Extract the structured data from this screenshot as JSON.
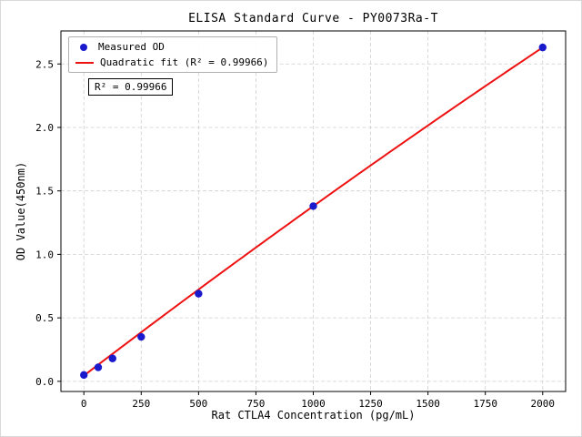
{
  "figure": {
    "title": "ELISA Standard Curve - PY0073Ra-T",
    "xlabel": "Rat CTLA4 Concentration (pg/mL)",
    "ylabel": "OD Value(450nm)",
    "annotation": "R² = 0.99966",
    "legend": [
      {
        "label": "Measured OD",
        "marker": "dot",
        "color": "#1a1acd"
      },
      {
        "label": "Quadratic fit (R² = 0.99966)",
        "marker": "line",
        "color": "#ee1111"
      }
    ]
  },
  "chart_data": {
    "type": "scatter",
    "title": "ELISA Standard Curve - PY0073Ra-T",
    "xlabel": "Rat CTLA4 Concentration (pg/mL)",
    "ylabel": "OD Value(450nm)",
    "x": [
      0,
      62.5,
      125,
      250,
      500,
      1000,
      2000
    ],
    "y": [
      0.05,
      0.11,
      0.18,
      0.35,
      0.69,
      1.38,
      2.63
    ],
    "series_name": "Measured OD",
    "fit": {
      "type": "quadratic",
      "label": "Quadratic fit (R² = 0.99966)",
      "r_squared": 0.99966,
      "coefficients": {
        "a": 0.045,
        "b": 0.0013775,
        "c": -4.25e-08
      },
      "x_range": [
        0,
        2000
      ]
    },
    "xticks": [
      0,
      250,
      500,
      750,
      1000,
      1250,
      1500,
      1750,
      2000
    ],
    "xticklabels": [
      "0",
      "250",
      "500",
      "750",
      "1000",
      "1250",
      "1500",
      "1750",
      "2000"
    ],
    "yticks": [
      0,
      0.5,
      1.0,
      1.5,
      2.0,
      2.5
    ],
    "yticklabels": [
      "0.0",
      "0.5",
      "1.0",
      "1.5",
      "2.0",
      "2.5"
    ],
    "xlim": [
      -100,
      2100
    ],
    "ylim": [
      -0.08,
      2.76
    ],
    "grid": true,
    "legend_position": "upper left",
    "point_color": "#1a1acd",
    "line_color": "#ee1111",
    "grid_color": "#cfcfcf"
  }
}
